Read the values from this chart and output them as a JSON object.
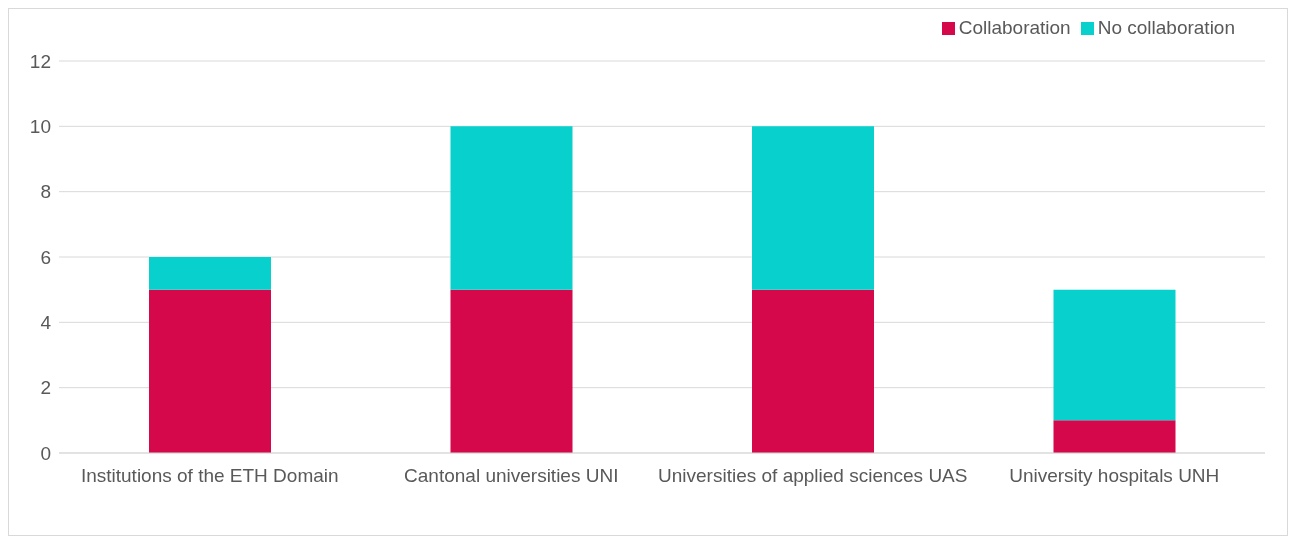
{
  "chart_data": {
    "type": "bar",
    "stacked": true,
    "categories": [
      "Institutions of the ETH Domain",
      "Cantonal universities UNI",
      "Universities of applied sciences UAS",
      "University hospitals UNH"
    ],
    "series": [
      {
        "name": "Collaboration",
        "color": "#d4084a",
        "values": [
          5,
          5,
          5,
          1
        ]
      },
      {
        "name": "No collaboration",
        "color": "#08d0cc",
        "values": [
          1,
          5,
          5,
          4
        ]
      }
    ],
    "ylim": [
      0,
      12
    ],
    "yticks": [
      0,
      2,
      4,
      6,
      8,
      10,
      12
    ],
    "grid": "y",
    "legend": "top right"
  }
}
